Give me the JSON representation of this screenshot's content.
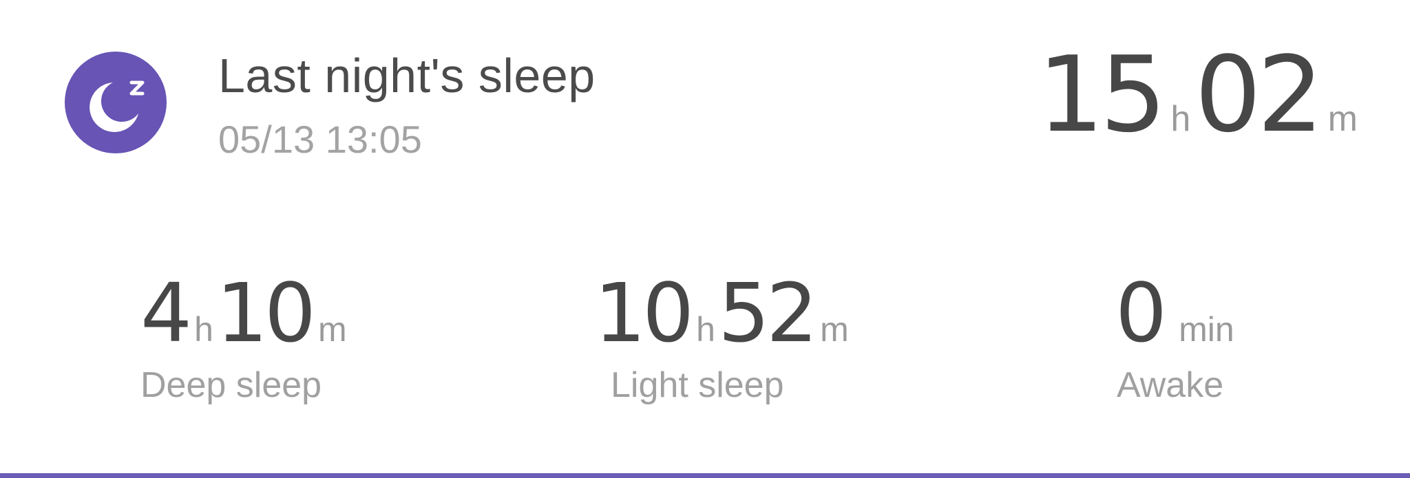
{
  "summary": {
    "title": "Last night's sleep",
    "timestamp": "05/13 13:05",
    "icon": "moon-zz-icon",
    "icon_color": "#6754b4",
    "total": {
      "hours": "15",
      "hours_unit": "h",
      "minutes": "02",
      "minutes_unit": "m"
    }
  },
  "stats": {
    "deep": {
      "hours": "4",
      "hours_unit": "h",
      "minutes": "10",
      "minutes_unit": "m",
      "label": "Deep sleep"
    },
    "light": {
      "hours": "10",
      "hours_unit": "h",
      "minutes": "52",
      "minutes_unit": "m",
      "label": "Light sleep"
    },
    "awake": {
      "minutes": "0",
      "minutes_unit": "min",
      "label": "Awake"
    }
  },
  "colors": {
    "accent": "#6754b4",
    "text_primary": "#474747",
    "text_secondary": "#a0a0a0"
  }
}
